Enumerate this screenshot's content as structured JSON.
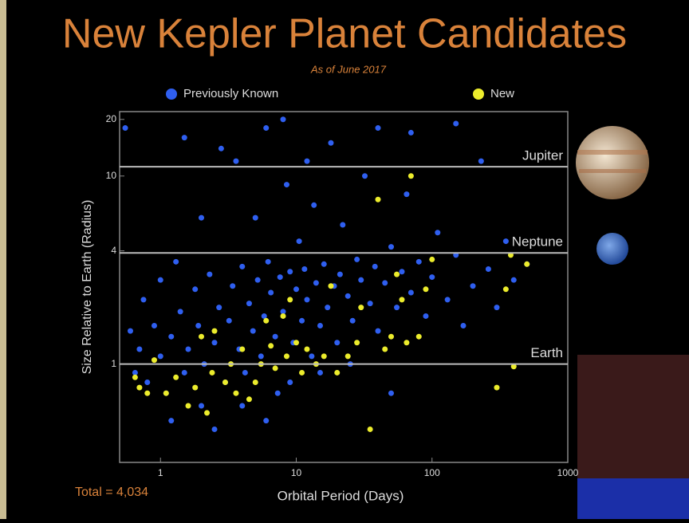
{
  "chart_data": {
    "type": "scatter",
    "title": "New Kepler Planet Candidates",
    "subtitle": "As of June 2017",
    "x_label": "Orbital Period (Days)",
    "y_label": "Size Relative to Earth (Radius)",
    "annotation": "Total = 4,034",
    "xlog": true,
    "ylog": true,
    "xlim": [
      0.5,
      1000
    ],
    "ylim": [
      0.3,
      22
    ],
    "xticks": [
      1,
      10,
      100,
      1000
    ],
    "yticks": [
      1,
      4,
      10,
      20
    ],
    "reference_lines": [
      {
        "value": 11.2,
        "label": "Jupiter"
      },
      {
        "value": 3.9,
        "label": "Neptune"
      },
      {
        "value": 1,
        "label": "Earth"
      }
    ],
    "series": [
      {
        "name": "Previously Known",
        "color": "#2f5ff0",
        "x": [
          0.6,
          0.65,
          0.7,
          0.75,
          0.8,
          0.9,
          1,
          1,
          1.1,
          1.2,
          1.3,
          1.4,
          1.5,
          1.6,
          1.8,
          1.9,
          2,
          2.1,
          2.3,
          2.5,
          2.7,
          2.8,
          3,
          3.2,
          3.4,
          3.6,
          3.8,
          4,
          4.2,
          4.5,
          4.8,
          5,
          5.2,
          5.5,
          5.8,
          6,
          6.2,
          6.5,
          7,
          7.3,
          7.6,
          8,
          8.5,
          9,
          9.5,
          10,
          10.5,
          11,
          11.5,
          12,
          13,
          13.5,
          14,
          15,
          16,
          17,
          18,
          19,
          20,
          21,
          22,
          24,
          26,
          28,
          30,
          32,
          35,
          38,
          40,
          45,
          50,
          55,
          60,
          65,
          70,
          80,
          90,
          100,
          110,
          130,
          150,
          170,
          200,
          230,
          260,
          300,
          350,
          400,
          500,
          0.55,
          1.5,
          2,
          1.2,
          2.5,
          4,
          6,
          9,
          15,
          25,
          8,
          40,
          70,
          150,
          12,
          50
        ],
        "values": [
          1.5,
          0.9,
          1.2,
          2.2,
          0.8,
          1.6,
          1.1,
          2.8,
          0.7,
          1.4,
          3.5,
          1.9,
          0.9,
          1.2,
          2.5,
          1.6,
          0.6,
          1.0,
          3.0,
          1.3,
          2.0,
          14,
          0.8,
          1.7,
          2.6,
          12,
          1.2,
          3.3,
          0.9,
          2.1,
          1.5,
          6,
          2.8,
          1.1,
          1.8,
          18,
          3.5,
          2.4,
          1.4,
          0.7,
          2.9,
          1.9,
          9,
          3.1,
          1.3,
          2.5,
          4.5,
          1.7,
          3.2,
          2.2,
          1.1,
          7,
          2.7,
          1.6,
          3.4,
          2.0,
          15,
          2.6,
          1.3,
          3.0,
          5.5,
          2.3,
          1.7,
          3.6,
          2.8,
          10,
          2.1,
          3.3,
          1.5,
          2.7,
          4.2,
          2.0,
          3.1,
          8,
          2.4,
          3.5,
          1.8,
          2.9,
          5,
          2.2,
          3.8,
          1.6,
          2.6,
          12,
          3.2,
          2.0,
          4.5,
          2.8,
          3.4,
          18,
          16,
          6,
          0.5,
          0.45,
          0.6,
          0.5,
          0.8,
          0.9,
          1.0,
          20,
          18,
          17,
          19,
          12,
          0.7
        ]
      },
      {
        "name": "New",
        "color": "#ecec2c",
        "x": [
          0.65,
          0.7,
          0.8,
          0.9,
          1.1,
          1.3,
          1.6,
          1.8,
          2,
          2.2,
          2.4,
          2.5,
          3,
          3.3,
          3.6,
          4,
          4.5,
          5,
          5.5,
          6,
          6.5,
          7,
          8,
          8.5,
          9,
          10,
          11,
          12,
          14,
          16,
          18,
          20,
          24,
          28,
          30,
          35,
          40,
          45,
          50,
          55,
          60,
          65,
          70,
          80,
          90,
          100,
          300,
          350,
          380,
          400,
          500
        ],
        "values": [
          0.85,
          0.75,
          0.7,
          1.05,
          0.7,
          0.85,
          0.6,
          0.75,
          1.4,
          0.55,
          0.9,
          1.5,
          0.8,
          1.0,
          0.7,
          1.2,
          0.65,
          0.8,
          1.0,
          1.7,
          1.25,
          0.95,
          1.8,
          1.1,
          2.2,
          1.3,
          0.9,
          1.2,
          1.0,
          1.1,
          2.6,
          0.9,
          1.1,
          1.3,
          2.0,
          0.45,
          7.5,
          1.2,
          1.4,
          3.0,
          2.2,
          1.3,
          10,
          1.4,
          2.5,
          3.6,
          0.75,
          2.5,
          3.8,
          0.97,
          3.4
        ]
      }
    ]
  }
}
